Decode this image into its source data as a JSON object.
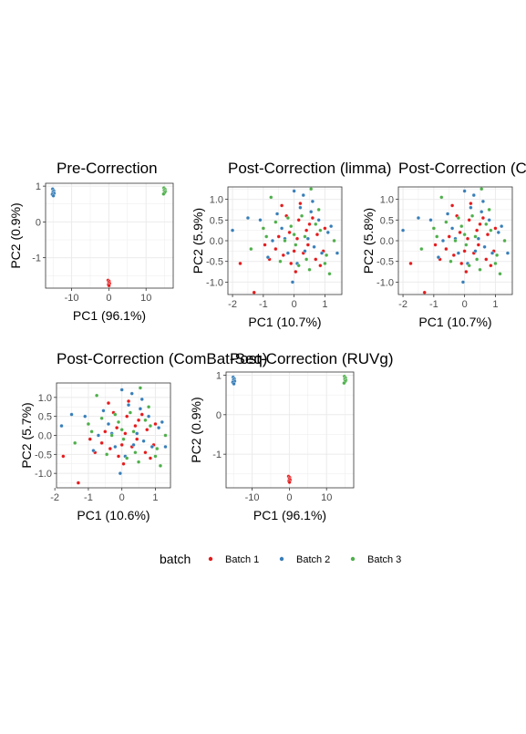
{
  "colors": {
    "batch_1": "#E41A1C",
    "batch_2": "#377EB8",
    "batch_3": "#4DAF4A",
    "grid": "#EBEBEB",
    "panel_border": "#333333",
    "text": "#000000",
    "tick_label": "#4D4D4D"
  },
  "legend": {
    "title": "batch",
    "items": [
      {
        "label": "Batch 1",
        "color": "#E41A1C"
      },
      {
        "label": "Batch 2",
        "color": "#377EB8"
      },
      {
        "label": "Batch 3",
        "color": "#4DAF4A"
      }
    ],
    "placement": "bottom"
  },
  "chart_data": [
    {
      "type": "scatter",
      "title": "Pre-Correction",
      "xlabel": "PC1 (96.1%)",
      "ylabel": "PC2 (0.9%)",
      "xlim": [
        -17,
        17.3
      ],
      "ylim": [
        -1.85,
        1.08
      ],
      "xticks": [
        -10,
        0,
        10
      ],
      "yticks": [
        -1,
        0,
        1
      ],
      "grid": true,
      "series": [
        {
          "name": "Batch 1",
          "color": "#E41A1C",
          "x": [
            -0.2,
            0.1,
            0.0,
            0.2,
            -0.1,
            0.05
          ],
          "y": [
            -1.63,
            -1.66,
            -1.69,
            -1.72,
            -1.75,
            -1.78
          ]
        },
        {
          "name": "Batch 2",
          "color": "#377EB8",
          "x": [
            -15.1,
            -14.8,
            -15.0,
            -14.7,
            -15.2,
            -14.9
          ],
          "y": [
            0.92,
            0.87,
            0.83,
            0.8,
            0.77,
            0.73
          ]
        },
        {
          "name": "Batch 3",
          "color": "#4DAF4A",
          "x": [
            14.8,
            15.1,
            14.9,
            15.2,
            15.0,
            14.7
          ],
          "y": [
            0.95,
            0.91,
            0.88,
            0.85,
            0.82,
            0.78
          ]
        }
      ]
    },
    {
      "type": "scatter",
      "title": "Post-Correction (limma)",
      "xlabel": "PC1 (10.7%)",
      "ylabel": "PC2 (5.9%)",
      "xlim": [
        -2.15,
        1.55
      ],
      "ylim": [
        -1.3,
        1.3
      ],
      "xticks": [
        -2,
        -1,
        0,
        1
      ],
      "yticks": [
        -1.0,
        -0.5,
        0.0,
        0.5,
        1.0
      ],
      "grid": true,
      "series": [
        {
          "name": "Batch 1",
          "color": "#E41A1C",
          "x": [
            -1.75,
            -1.3,
            -0.95,
            -0.8,
            -0.6,
            -0.5,
            -0.35,
            -0.25,
            -0.1,
            0.0,
            0.1,
            0.15,
            0.3,
            0.4,
            0.5,
            0.6,
            0.7,
            0.85,
            1.0,
            1.3,
            -1.0,
            0.2,
            -0.4,
            0.45,
            0.75,
            -0.15,
            0.05,
            0.95
          ],
          "y": [
            -0.55,
            -1.25,
            -0.1,
            -0.45,
            -0.2,
            0.1,
            -0.35,
            0.6,
            -0.55,
            -0.25,
            0.05,
            0.5,
            -0.3,
            0.25,
            0.4,
            0.55,
            -0.45,
            -0.6,
            0.3,
            0.0,
            0.3,
            0.9,
            0.85,
            -0.1,
            0.15,
            0.2,
            -0.75,
            -0.25
          ]
        },
        {
          "name": "Batch 2",
          "color": "#377EB8",
          "x": [
            -2.0,
            -1.5,
            -1.1,
            -0.7,
            -0.4,
            -0.2,
            0.0,
            0.2,
            0.35,
            0.55,
            0.8,
            1.1,
            1.4,
            -0.85,
            0.45,
            0.65,
            -0.05,
            0.3,
            0.9,
            1.2,
            -0.55,
            0.1,
            0.6,
            -0.3
          ],
          "y": [
            0.25,
            0.55,
            0.5,
            0.0,
            0.3,
            -0.3,
            1.2,
            0.8,
            -0.25,
            0.7,
            0.5,
            0.2,
            -0.3,
            -0.4,
            0.05,
            -0.15,
            -1.0,
            1.1,
            -0.3,
            0.35,
            0.65,
            -0.55,
            0.95,
            0.05
          ]
        },
        {
          "name": "Batch 3",
          "color": "#4DAF4A",
          "x": [
            -1.4,
            -1.0,
            -0.9,
            -0.6,
            -0.45,
            -0.3,
            -0.1,
            0.05,
            0.25,
            0.4,
            0.55,
            0.7,
            0.85,
            1.0,
            1.15,
            1.3,
            -0.75,
            0.0,
            0.5,
            0.8,
            -0.2,
            0.35,
            1.05,
            0.15
          ],
          "y": [
            -0.2,
            0.3,
            0.1,
            0.45,
            -0.5,
            0.0,
            0.35,
            -0.1,
            0.6,
            -0.45,
            1.25,
            0.4,
            0.25,
            -0.55,
            -0.8,
            0.0,
            1.05,
            0.15,
            -0.7,
            0.75,
            0.55,
            0.1,
            -0.35,
            -0.6
          ]
        }
      ]
    },
    {
      "type": "scatter",
      "title": "Post-Correction (C",
      "xlabel": "PC1 (10.7%)",
      "ylabel": "PC2 (5.8%)",
      "xlim": [
        -2.15,
        1.55
      ],
      "ylim": [
        -1.3,
        1.3
      ],
      "xticks": [
        -2,
        -1,
        0,
        1
      ],
      "yticks": [
        -1.0,
        -0.5,
        0.0,
        0.5,
        1.0
      ],
      "grid": true,
      "series": [
        {
          "name": "Batch 1",
          "color": "#E41A1C",
          "x": [
            -1.75,
            -1.3,
            -0.95,
            -0.8,
            -0.6,
            -0.5,
            -0.35,
            -0.25,
            -0.1,
            0.0,
            0.1,
            0.15,
            0.3,
            0.4,
            0.5,
            0.6,
            0.7,
            0.85,
            1.0,
            1.3,
            -1.0,
            0.2,
            -0.4,
            0.45,
            0.75,
            -0.15,
            0.05,
            0.95
          ],
          "y": [
            -0.55,
            -1.25,
            -0.1,
            -0.45,
            -0.2,
            0.1,
            -0.35,
            0.6,
            -0.55,
            -0.25,
            0.05,
            0.5,
            -0.3,
            0.25,
            0.4,
            0.55,
            -0.45,
            -0.6,
            0.3,
            0.0,
            0.3,
            0.9,
            0.85,
            -0.1,
            0.15,
            0.2,
            -0.75,
            -0.25
          ]
        },
        {
          "name": "Batch 2",
          "color": "#377EB8",
          "x": [
            -2.0,
            -1.5,
            -1.1,
            -0.7,
            -0.4,
            -0.2,
            0.0,
            0.2,
            0.35,
            0.55,
            0.8,
            1.1,
            1.4,
            -0.85,
            0.45,
            0.65,
            -0.05,
            0.3,
            0.9,
            1.2,
            -0.55,
            0.1,
            0.6,
            -0.3
          ],
          "y": [
            0.25,
            0.55,
            0.5,
            0.0,
            0.3,
            -0.3,
            1.2,
            0.8,
            -0.25,
            0.7,
            0.5,
            0.2,
            -0.3,
            -0.4,
            0.05,
            -0.15,
            -1.0,
            1.1,
            -0.3,
            0.35,
            0.65,
            -0.55,
            0.95,
            0.05
          ]
        },
        {
          "name": "Batch 3",
          "color": "#4DAF4A",
          "x": [
            -1.4,
            -1.0,
            -0.9,
            -0.6,
            -0.45,
            -0.3,
            -0.1,
            0.05,
            0.25,
            0.4,
            0.55,
            0.7,
            0.85,
            1.0,
            1.15,
            1.3,
            -0.75,
            0.0,
            0.5,
            0.8,
            -0.2,
            0.35,
            1.05,
            0.15
          ],
          "y": [
            -0.2,
            0.3,
            0.1,
            0.45,
            -0.5,
            0.0,
            0.35,
            -0.1,
            0.6,
            -0.45,
            1.25,
            0.4,
            0.25,
            -0.55,
            -0.8,
            0.0,
            1.05,
            0.15,
            -0.7,
            0.75,
            0.55,
            0.1,
            -0.35,
            -0.6
          ]
        }
      ]
    },
    {
      "type": "scatter",
      "title": "Post-Correction (ComBat-Seq)",
      "xlabel": "PC1 (10.6%)",
      "ylabel": "PC2 (5.7%)",
      "xlim": [
        -1.95,
        1.45
      ],
      "ylim": [
        -1.38,
        1.38
      ],
      "xticks": [
        -2,
        -1,
        0,
        1
      ],
      "yticks": [
        -1.0,
        -0.5,
        0.0,
        0.5,
        1.0
      ],
      "grid": true,
      "series": [
        {
          "name": "Batch 1",
          "color": "#E41A1C",
          "x": [
            -1.75,
            -1.3,
            -0.95,
            -0.8,
            -0.6,
            -0.5,
            -0.35,
            -0.25,
            -0.1,
            0.0,
            0.1,
            0.15,
            0.3,
            0.4,
            0.5,
            0.6,
            0.7,
            0.85,
            1.0,
            1.3,
            -1.0,
            0.2,
            -0.4,
            0.45,
            0.75,
            -0.15,
            0.05,
            0.95
          ],
          "y": [
            -0.55,
            -1.25,
            -0.1,
            -0.45,
            -0.2,
            0.1,
            -0.35,
            0.6,
            -0.55,
            -0.25,
            0.05,
            0.5,
            -0.3,
            0.25,
            0.4,
            0.55,
            -0.45,
            -0.6,
            0.3,
            0.0,
            0.3,
            0.9,
            0.85,
            -0.1,
            0.15,
            0.2,
            -0.75,
            -0.25
          ]
        },
        {
          "name": "Batch 2",
          "color": "#377EB8",
          "x": [
            -1.8,
            -1.5,
            -1.1,
            -0.7,
            -0.4,
            -0.2,
            0.0,
            0.2,
            0.35,
            0.55,
            0.8,
            1.1,
            1.3,
            -0.85,
            0.45,
            0.65,
            -0.05,
            0.3,
            0.9,
            1.2,
            -0.55,
            0.1,
            0.6,
            -0.3
          ],
          "y": [
            0.25,
            0.55,
            0.5,
            0.0,
            0.3,
            -0.3,
            1.2,
            0.8,
            -0.25,
            0.7,
            0.5,
            0.2,
            -0.3,
            -0.4,
            0.05,
            -0.15,
            -1.0,
            1.1,
            -0.3,
            0.35,
            0.65,
            -0.55,
            0.95,
            0.05
          ]
        },
        {
          "name": "Batch 3",
          "color": "#4DAF4A",
          "x": [
            -1.4,
            -1.0,
            -0.9,
            -0.6,
            -0.45,
            -0.3,
            -0.1,
            0.05,
            0.25,
            0.4,
            0.55,
            0.7,
            0.85,
            1.0,
            1.15,
            1.3,
            -0.75,
            0.0,
            0.5,
            0.8,
            -0.2,
            0.35,
            1.05,
            0.15
          ],
          "y": [
            -0.2,
            0.3,
            0.1,
            0.45,
            -0.5,
            0.0,
            0.35,
            -0.1,
            0.6,
            -0.45,
            1.25,
            0.4,
            0.25,
            -0.55,
            -0.8,
            0.0,
            1.05,
            0.15,
            -0.7,
            0.75,
            0.55,
            0.1,
            -0.35,
            -0.6
          ]
        }
      ]
    },
    {
      "type": "scatter",
      "title": "Post-Correction (RUVg)",
      "xlabel": "PC1 (96.1%)",
      "ylabel": "PC2 (0.9%)",
      "xlim": [
        -17,
        17.3
      ],
      "ylim": [
        -1.85,
        1.08
      ],
      "xticks": [
        -10,
        0,
        10
      ],
      "yticks": [
        -1,
        0,
        1
      ],
      "grid": true,
      "series": [
        {
          "name": "Batch 1",
          "color": "#E41A1C",
          "x": [
            -0.2,
            0.1,
            0.0,
            0.2,
            -0.1,
            0.05
          ],
          "y": [
            -1.56,
            -1.59,
            -1.62,
            -1.65,
            -1.68,
            -1.71
          ]
        },
        {
          "name": "Batch 2",
          "color": "#377EB8",
          "x": [
            -15.1,
            -14.8,
            -15.0,
            -14.7,
            -15.2,
            -14.9
          ],
          "y": [
            0.95,
            0.91,
            0.88,
            0.85,
            0.82,
            0.78
          ]
        },
        {
          "name": "Batch 3",
          "color": "#4DAF4A",
          "x": [
            14.8,
            15.1,
            14.9,
            15.2,
            15.0,
            14.7
          ],
          "y": [
            0.97,
            0.93,
            0.9,
            0.87,
            0.84,
            0.8
          ]
        }
      ]
    }
  ]
}
